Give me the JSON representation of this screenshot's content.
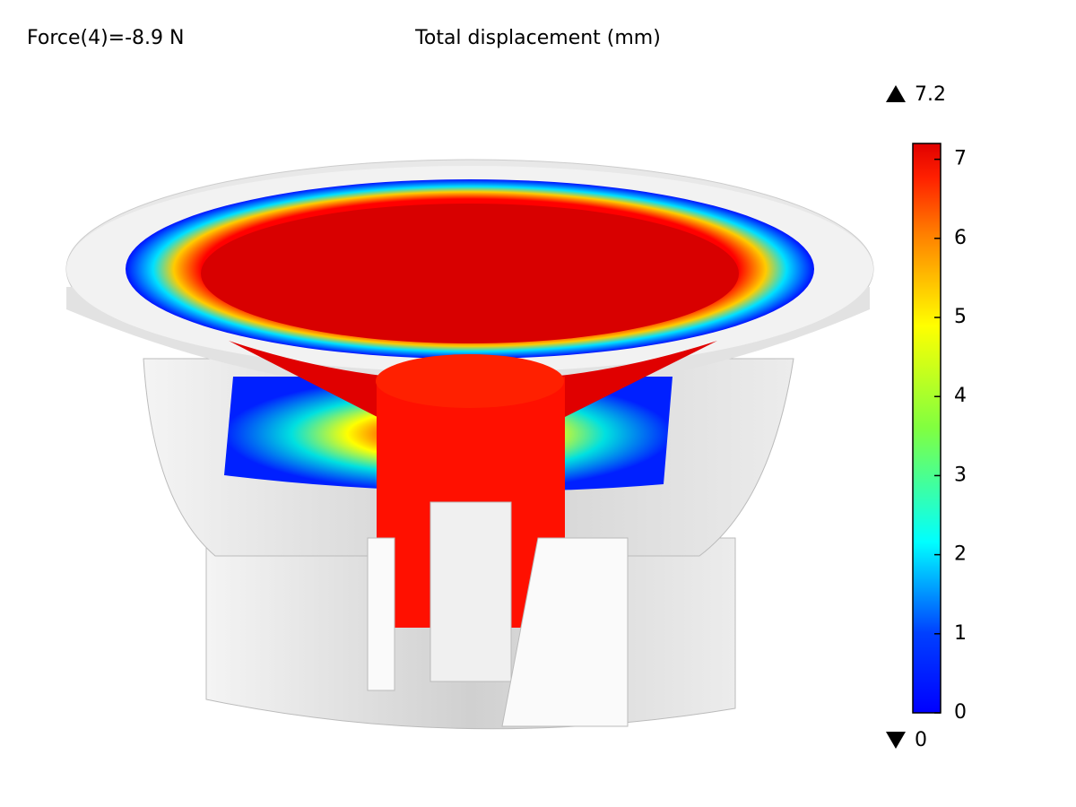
{
  "header": {
    "annotation": "Force(4)=-8.9 N",
    "title": "Total displacement (mm)"
  },
  "colorbar": {
    "max": 7.2,
    "min": 0,
    "ticks": [
      0,
      1,
      2,
      3,
      4,
      5,
      6,
      7
    ]
  }
}
